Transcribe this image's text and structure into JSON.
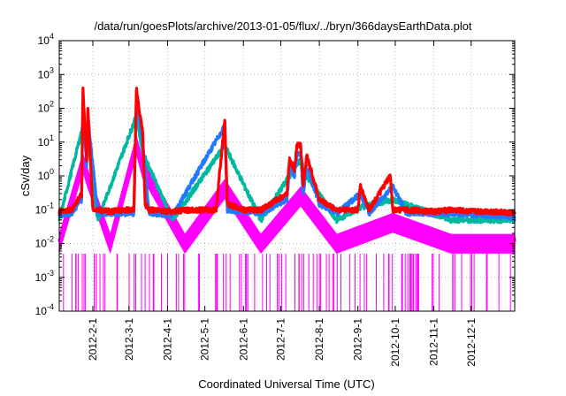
{
  "chart_data": {
    "type": "line",
    "title": "/data/run/goesPlots/archive/2013-01-05/flux/../bryn/366daysEarthData.plot",
    "xlabel": "Coordinated Universal Time (UTC)",
    "ylabel": "cSv/day",
    "y_scale": "log",
    "ylim": [
      0.0001,
      10000
    ],
    "xlim": [
      "2012-01-05",
      "2013-01-05"
    ],
    "grid": true,
    "y_ticks": [
      {
        "value": 0.0001,
        "base": "10",
        "exp": "-4"
      },
      {
        "value": 0.001,
        "base": "10",
        "exp": "-3"
      },
      {
        "value": 0.01,
        "base": "10",
        "exp": "-2"
      },
      {
        "value": 0.1,
        "base": "10",
        "exp": "-1"
      },
      {
        "value": 1,
        "base": "10",
        "exp": "0"
      },
      {
        "value": 10,
        "base": "10",
        "exp": "1"
      },
      {
        "value": 100,
        "base": "10",
        "exp": "2"
      },
      {
        "value": 1000,
        "base": "10",
        "exp": "3"
      },
      {
        "value": 10000,
        "base": "10",
        "exp": "4"
      }
    ],
    "x_ticks": [
      {
        "date": "2012-02-01",
        "label": "2012-2-1"
      },
      {
        "date": "2012-03-01",
        "label": "2012-3-1"
      },
      {
        "date": "2012-04-01",
        "label": "2012-4-1"
      },
      {
        "date": "2012-05-01",
        "label": "2012-5-1"
      },
      {
        "date": "2012-06-01",
        "label": "2012-6-1"
      },
      {
        "date": "2012-07-01",
        "label": "2012-7-1"
      },
      {
        "date": "2012-08-01",
        "label": "2012-8-1"
      },
      {
        "date": "2012-09-01",
        "label": "2012-9-1"
      },
      {
        "date": "2012-10-01",
        "label": "2012-10-1"
      },
      {
        "date": "2012-11-01",
        "label": "2012-11-1"
      },
      {
        "date": "2012-12-01",
        "label": "2012-12-1"
      }
    ],
    "series": [
      {
        "color": "#ff0000",
        "x": [
          "2012-01-05",
          "2012-01-15",
          "2012-01-23",
          "2012-01-24",
          "2012-01-27",
          "2012-01-28",
          "2012-02-01",
          "2012-02-05",
          "2012-02-15",
          "2012-02-25",
          "2012-03-05",
          "2012-03-07",
          "2012-03-09",
          "2012-03-12",
          "2012-03-14",
          "2012-03-17",
          "2012-03-20",
          "2012-04-05",
          "2012-04-20",
          "2012-05-10",
          "2012-05-17",
          "2012-05-19",
          "2012-06-01",
          "2012-06-15",
          "2012-07-06",
          "2012-07-08",
          "2012-07-12",
          "2012-07-14",
          "2012-07-17",
          "2012-07-19",
          "2012-07-22",
          "2012-08-01",
          "2012-08-15",
          "2012-09-01",
          "2012-09-03",
          "2012-09-10",
          "2012-09-27",
          "2012-09-29",
          "2012-10-10",
          "2012-11-01",
          "2012-11-15",
          "2012-12-01",
          "2012-12-15",
          "2013-01-05"
        ],
        "y": [
          0.09,
          0.1,
          0.3,
          400,
          3,
          90,
          0.1,
          0.1,
          0.09,
          0.1,
          0.1,
          400,
          100,
          20,
          0.15,
          0.1,
          0.1,
          0.09,
          0.1,
          0.1,
          45,
          0.15,
          0.1,
          0.1,
          0.3,
          3.5,
          1.5,
          8,
          9,
          0.5,
          4,
          0.2,
          0.1,
          0.1,
          0.5,
          0.1,
          1,
          0.1,
          0.1,
          0.09,
          0.1,
          0.09,
          0.09,
          0.08
        ]
      },
      {
        "color": "#00b8a0",
        "x": [
          "2012-01-05",
          "2012-01-24",
          "2012-01-28",
          "2012-02-05",
          "2012-03-07",
          "2012-03-12",
          "2012-04-05",
          "2012-05-17",
          "2012-06-15",
          "2012-07-08",
          "2012-07-17",
          "2012-07-22",
          "2012-08-15",
          "2012-09-03",
          "2012-09-29",
          "2012-11-15",
          "2013-01-05"
        ],
        "y": [
          0.05,
          30,
          10,
          0.05,
          60,
          5,
          0.05,
          8,
          0.05,
          1,
          3,
          1,
          0.05,
          0.12,
          0.2,
          0.05,
          0.05
        ]
      },
      {
        "color": "#2278ff",
        "x": [
          "2012-01-05",
          "2012-01-15",
          "2012-01-23",
          "2012-01-24",
          "2012-01-27",
          "2012-01-28",
          "2012-02-05",
          "2012-03-05",
          "2012-03-07",
          "2012-03-09",
          "2012-03-12",
          "2012-03-17",
          "2012-04-05",
          "2012-05-17",
          "2012-05-19",
          "2012-06-15",
          "2012-07-06",
          "2012-07-08",
          "2012-07-12",
          "2012-07-14",
          "2012-07-17",
          "2012-07-19",
          "2012-07-22",
          "2012-08-01",
          "2012-08-15",
          "2012-09-03",
          "2012-09-10",
          "2012-09-29",
          "2012-10-10",
          "2012-11-15",
          "2012-12-15",
          "2013-01-05"
        ],
        "y": [
          0.07,
          0.08,
          0.2,
          120,
          2,
          60,
          0.08,
          0.08,
          200,
          60,
          10,
          0.08,
          0.07,
          30,
          0.1,
          0.08,
          0.2,
          2,
          1,
          4,
          5,
          0.3,
          2,
          0.15,
          0.08,
          0.3,
          0.08,
          0.5,
          0.08,
          0.08,
          0.07,
          0.06
        ]
      },
      {
        "color": "#ff00ff",
        "x": [
          "2012-01-05",
          "2012-01-24",
          "2012-01-28",
          "2012-02-15",
          "2012-03-07",
          "2012-03-12",
          "2012-04-15",
          "2012-05-17",
          "2012-06-15",
          "2012-07-17",
          "2012-08-15",
          "2012-09-29",
          "2012-11-15",
          "2013-01-05"
        ],
        "y": [
          0.012,
          3,
          1,
          0.012,
          10,
          2,
          0.012,
          0.5,
          0.012,
          0.3,
          0.012,
          0.05,
          0.012,
          0.012
        ]
      }
    ]
  }
}
